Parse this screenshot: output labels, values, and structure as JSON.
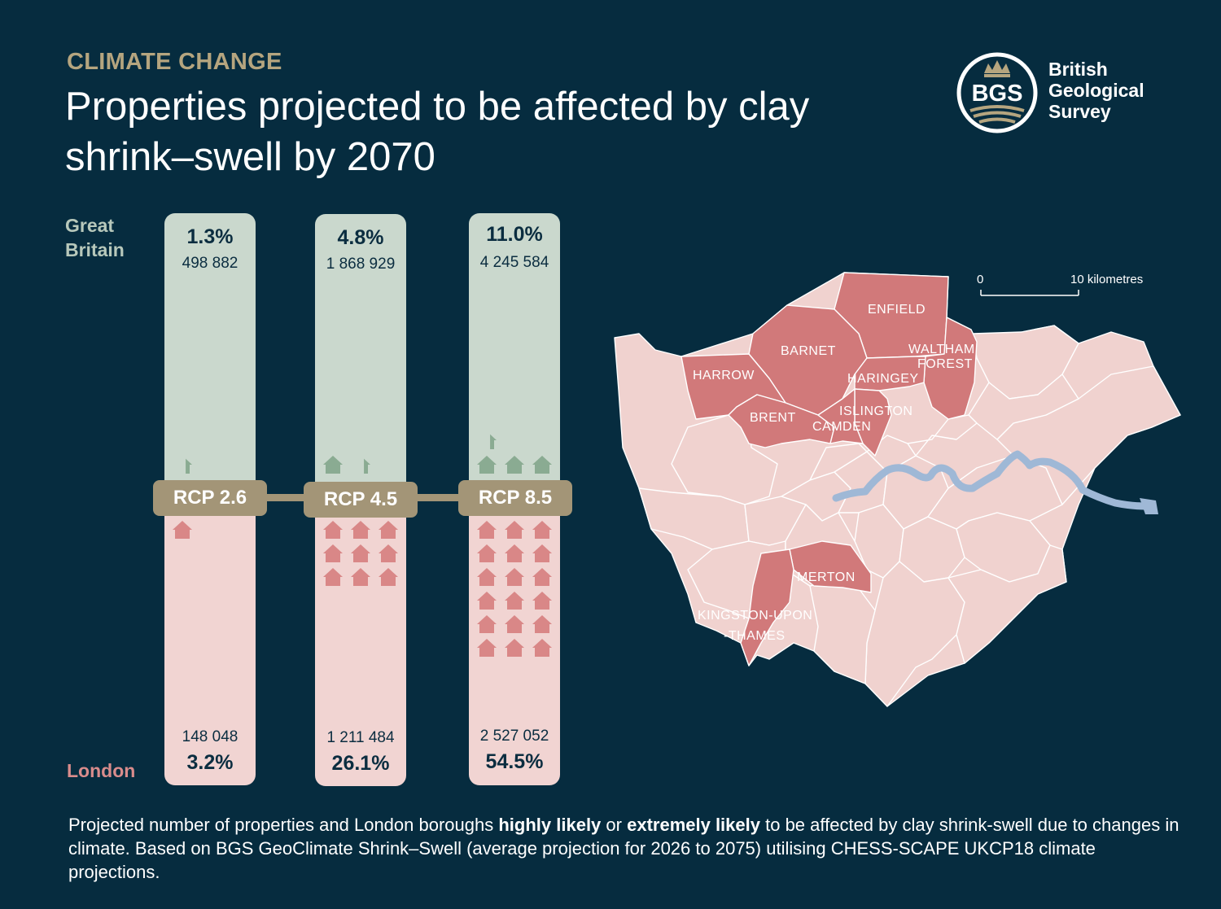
{
  "header": {
    "kicker": "CLIMATE CHANGE",
    "title": "Properties projected to be affected by clay shrink–swell by 2070"
  },
  "logo": {
    "mark": "BGS",
    "line1": "British",
    "line2": "Geological",
    "line3": "Survey"
  },
  "labels": {
    "great_britain": "Great Britain",
    "great_britain_line1": "Great",
    "great_britain_line2": "Britain",
    "london": "London"
  },
  "scenarios": [
    {
      "name": "RCP 2.6",
      "gb_pct": "1.3%",
      "gb_count": "498 882",
      "ld_count": "148 048",
      "ld_pct": "3.2%",
      "gb_houses": 0.33,
      "ld_houses": 1
    },
    {
      "name": "RCP 4.5",
      "gb_pct": "4.8%",
      "gb_count": "1 868 929",
      "ld_count": "1 211 484",
      "ld_pct": "26.1%",
      "gb_houses": 1.33,
      "ld_houses": 9
    },
    {
      "name": "RCP 8.5",
      "gb_pct": "11.0%",
      "gb_count": "4 245 584",
      "ld_count": "2 527 052",
      "ld_pct": "54.5%",
      "gb_houses": 3.33,
      "ld_houses": 18
    }
  ],
  "map": {
    "scale_start": "0",
    "scale_end": "10 kilometres",
    "highlighted_boroughs": [
      "ENFIELD",
      "BARNET",
      "WALTHAM",
      "FOREST",
      "HARROW",
      "HARINGEY",
      "BRENT",
      "ISLINGTON",
      "CAMDEN",
      "MERTON",
      "KINGSTON-UPON",
      "-THAMES"
    ]
  },
  "caption": {
    "part1": "Projected number of properties and London boroughs ",
    "bold1": "highly likely",
    "part2": " or ",
    "bold2": "extremely likely",
    "part3": " to be affected by clay shrink-swell due to changes in climate. Based on BGS GeoClimate Shrink–Swell (average projection for 2026 to 2075) utilising CHESS-SCAPE UKCP18 climate projections."
  },
  "colors": {
    "background": "#062c3f",
    "accent_gold": "#b5a57f",
    "gb_panel": "#cad8cd",
    "london_panel": "#f1d4d2",
    "gb_house": "#8aab92",
    "london_house": "#d98787",
    "borough_light": "#f0d2cf",
    "borough_highlight": "#d1797a",
    "river": "#9fb8d6"
  }
}
